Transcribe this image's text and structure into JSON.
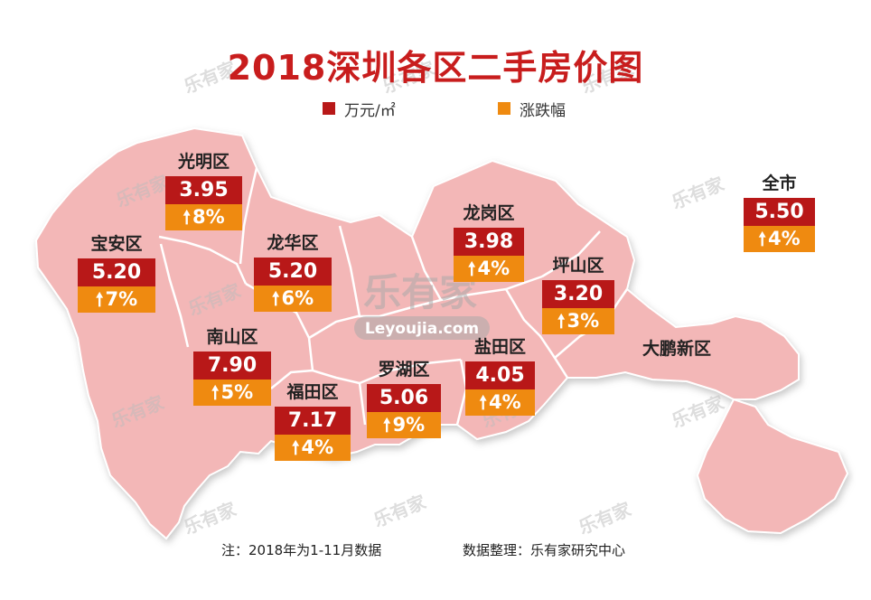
{
  "title": "2018深圳各区二手房价图",
  "legend": {
    "price_label": "万元/㎡",
    "change_label": "涨跌幅",
    "price_color": "#b81818",
    "change_color": "#ef8a10"
  },
  "districts": [
    {
      "id": "guangming",
      "name": "光明区",
      "price": "3.95",
      "change": "8%",
      "direction": "up"
    },
    {
      "id": "baoan",
      "name": "宝安区",
      "price": "5.20",
      "change": "7%",
      "direction": "up"
    },
    {
      "id": "longhua",
      "name": "龙华区",
      "price": "5.20",
      "change": "6%",
      "direction": "up"
    },
    {
      "id": "longgang",
      "name": "龙岗区",
      "price": "3.98",
      "change": "4%",
      "direction": "up"
    },
    {
      "id": "pingshan",
      "name": "坪山区",
      "price": "3.20",
      "change": "3%",
      "direction": "up"
    },
    {
      "id": "nanshan",
      "name": "南山区",
      "price": "7.90",
      "change": "5%",
      "direction": "up"
    },
    {
      "id": "futian",
      "name": "福田区",
      "price": "7.17",
      "change": "4%",
      "direction": "up"
    },
    {
      "id": "luohu",
      "name": "罗湖区",
      "price": "5.06",
      "change": "9%",
      "direction": "up"
    },
    {
      "id": "yantian",
      "name": "盐田区",
      "price": "4.05",
      "change": "4%",
      "direction": "up"
    },
    {
      "id": "citywide",
      "name": "全市",
      "price": "5.50",
      "change": "4%",
      "direction": "up"
    }
  ],
  "dapeng_label": "大鹏新区",
  "watermark": {
    "brand": "乐有家",
    "domain": "Leyoujia.com"
  },
  "footnote": {
    "note": "注：2018年为1-11月数据",
    "source": "数据整理：乐有家研究中心"
  },
  "colors": {
    "map_fill": "#f3b7b7",
    "map_border": "#ffffff",
    "title": "#c81d1d"
  },
  "icons": {
    "up": "up-arrow-icon"
  }
}
